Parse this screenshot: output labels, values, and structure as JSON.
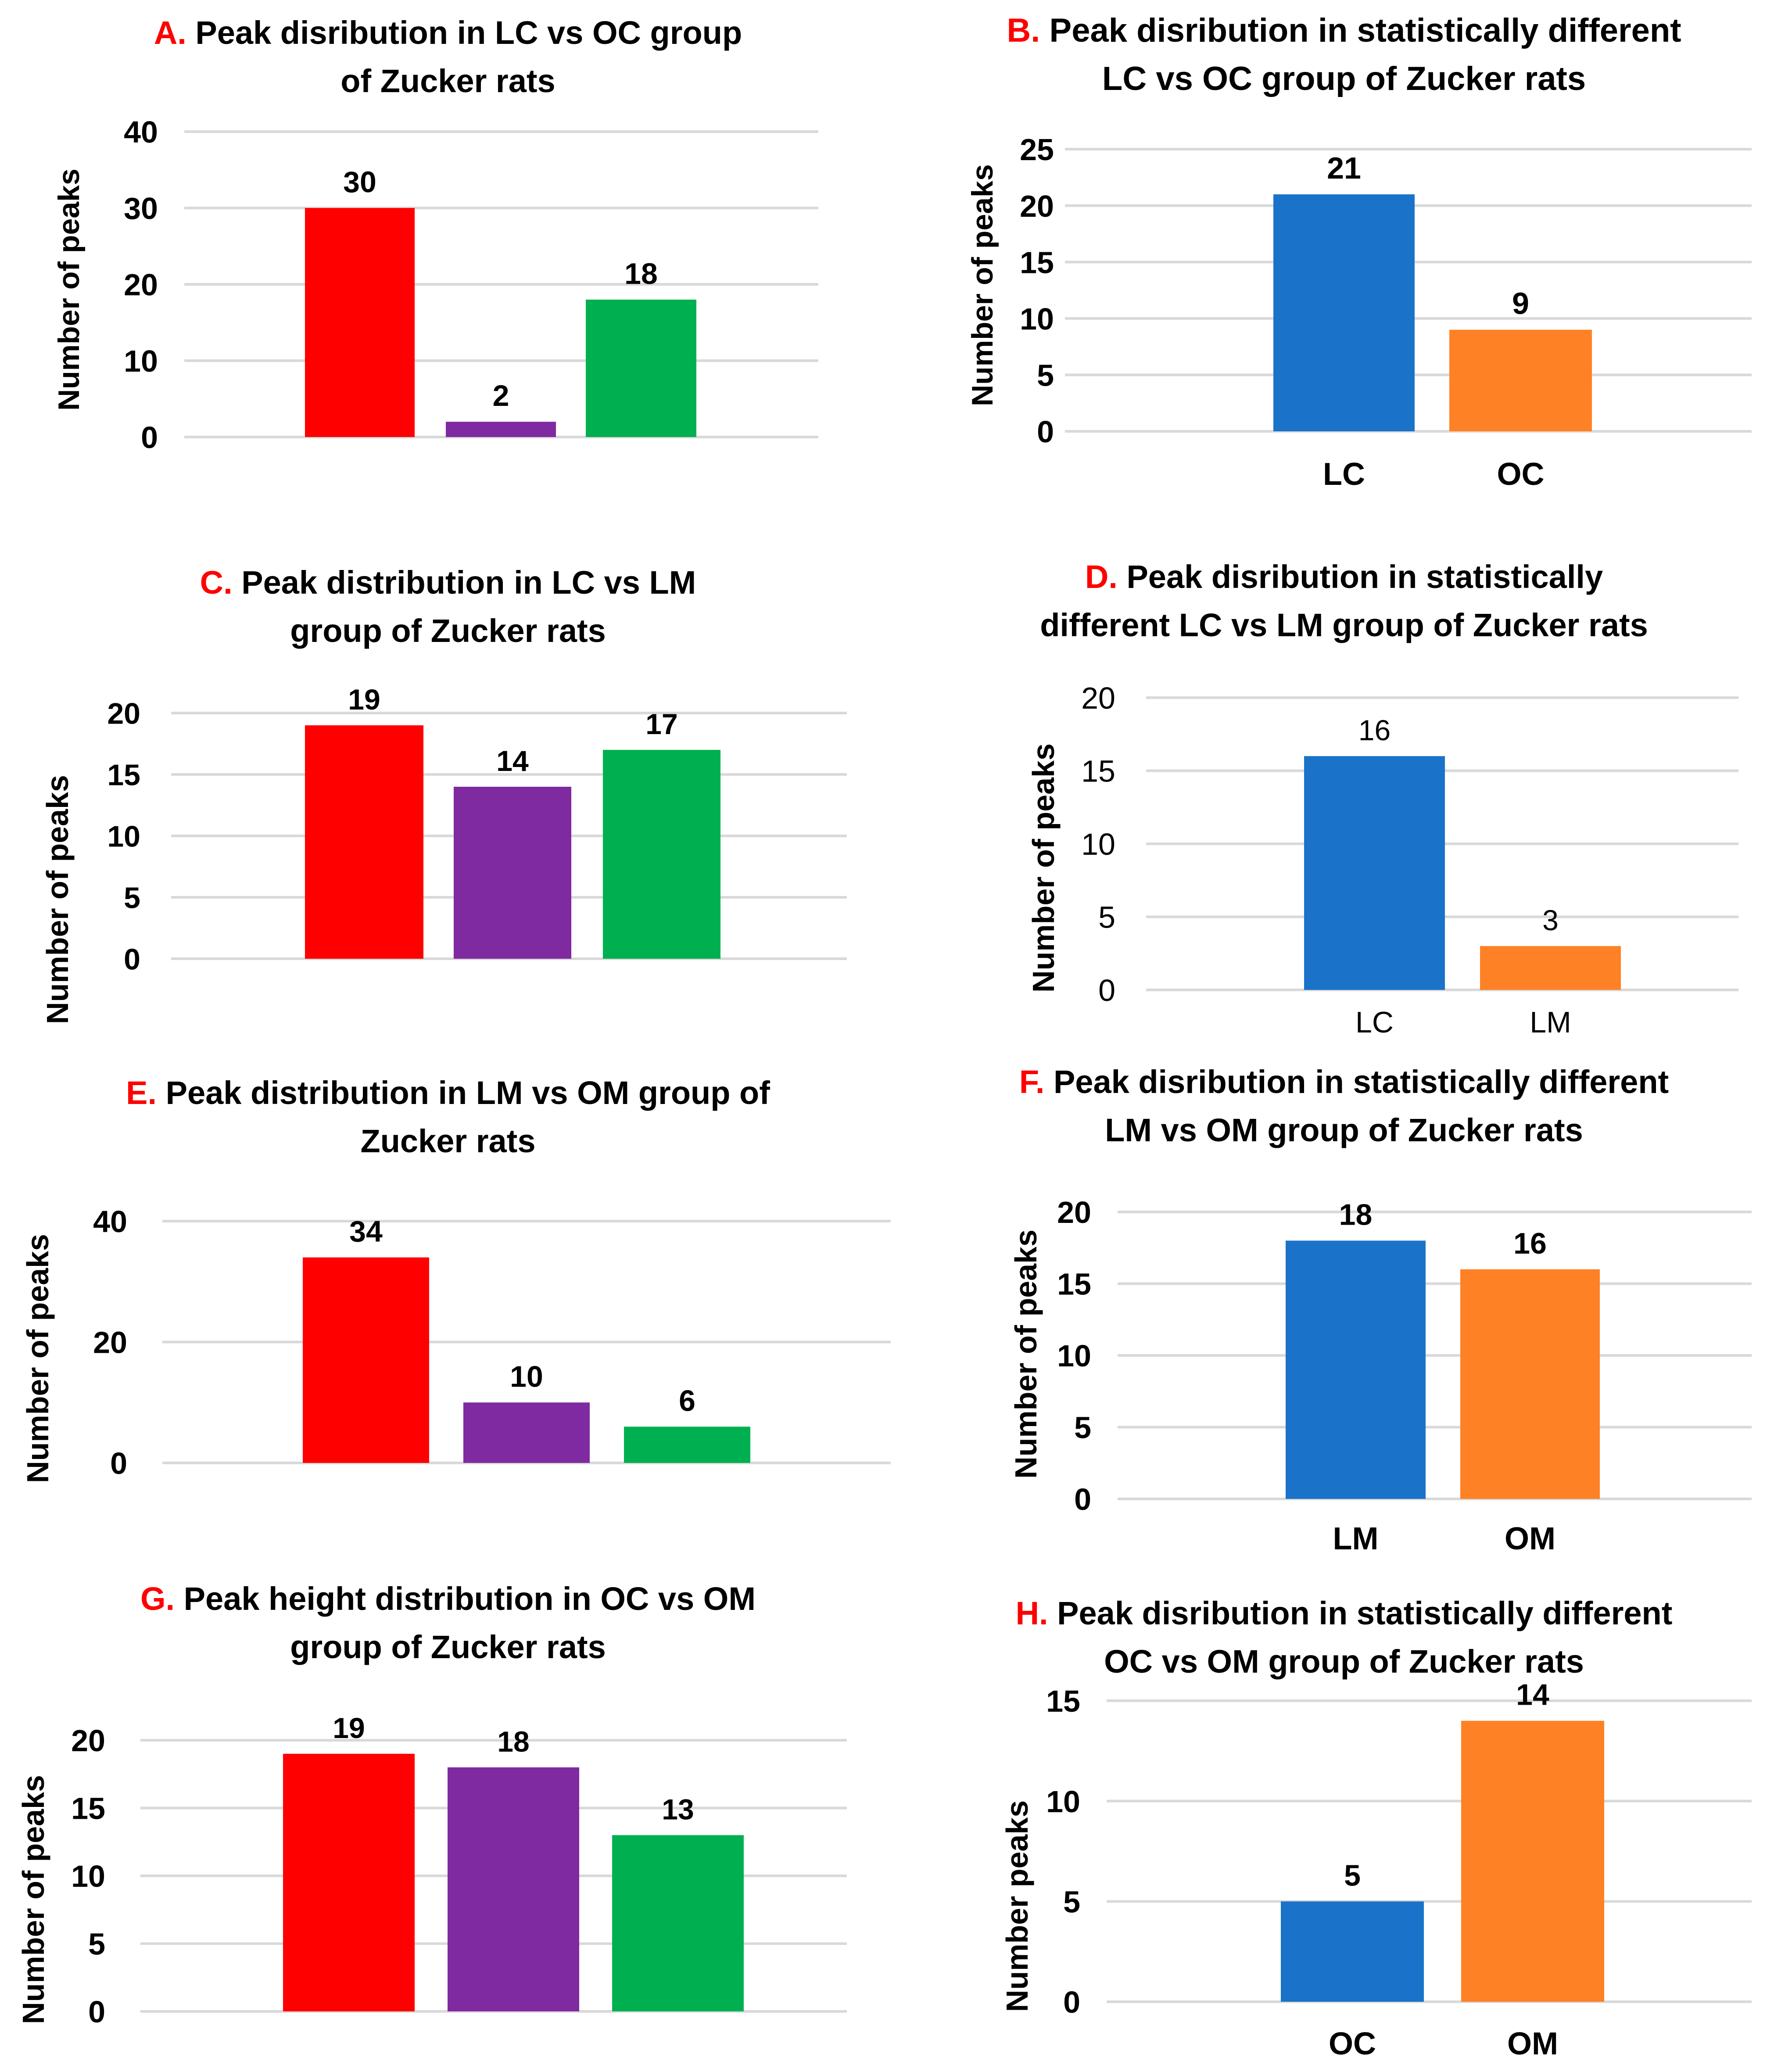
{
  "colors": {
    "red": "#ff0000",
    "purple": "#7f2aa0",
    "green": "#00b050",
    "blue": "#1a73c8",
    "orange": "#ff8125",
    "letter": "#ff0000",
    "grid": "#d9d9d9"
  },
  "chart_data": [
    {
      "id": "A",
      "type": "bar",
      "letter": "A.",
      "title_lines": [
        "Peak disribution in LC vs OC group",
        "of  Zucker rats"
      ],
      "ylabel": "Number of peaks",
      "categories": [
        "",
        "",
        ""
      ],
      "values": [
        30,
        2,
        18
      ],
      "bar_colors": [
        "red",
        "purple",
        "green"
      ],
      "yticks": [
        0,
        10,
        20,
        30,
        40
      ],
      "ylim": [
        0,
        40
      ]
    },
    {
      "id": "B",
      "type": "bar",
      "letter": "B.",
      "title_lines": [
        "Peak disribution in statistically different",
        "LC vs OC group of  Zucker rats"
      ],
      "ylabel": "Number of peaks",
      "categories": [
        "LC",
        "OC"
      ],
      "values": [
        21,
        9
      ],
      "bar_colors": [
        "blue",
        "orange"
      ],
      "yticks": [
        0,
        5,
        10,
        15,
        20,
        25
      ],
      "ylim": [
        0,
        25
      ]
    },
    {
      "id": "C",
      "type": "bar",
      "letter": "C.",
      "title_lines": [
        "Peak distribution in LC vs LM",
        "group of Zucker  rats"
      ],
      "ylabel": "Number of peaks",
      "categories": [
        "",
        "",
        ""
      ],
      "values": [
        19,
        14,
        17
      ],
      "bar_colors": [
        "red",
        "purple",
        "green"
      ],
      "yticks": [
        0,
        5,
        10,
        15,
        20
      ],
      "ylim": [
        0,
        20
      ]
    },
    {
      "id": "D",
      "type": "bar",
      "letter": "D.",
      "title_lines": [
        "Peak disribution in statistically",
        "different LC vs LM group of  Zucker rats"
      ],
      "ylabel": "Number of  peaks",
      "categories": [
        "LC",
        "LM"
      ],
      "values": [
        16,
        3
      ],
      "bar_colors": [
        "blue",
        "orange"
      ],
      "yticks": [
        0,
        5,
        10,
        15,
        20
      ],
      "ylim": [
        0,
        20
      ]
    },
    {
      "id": "E",
      "type": "bar",
      "letter": "E.",
      "title_lines": [
        "Peak distribution in LM vs OM group of",
        "Zucker  rats"
      ],
      "ylabel": "Number of peaks",
      "categories": [
        "",
        "",
        ""
      ],
      "values": [
        34,
        10,
        6
      ],
      "bar_colors": [
        "red",
        "purple",
        "green"
      ],
      "yticks": [
        0,
        20,
        40
      ],
      "ylim": [
        0,
        40
      ]
    },
    {
      "id": "F",
      "type": "bar",
      "letter": "F.",
      "title_lines": [
        "Peak disribution in statistically different",
        "LM vs OM group of  Zucker rats"
      ],
      "ylabel": "Number of peaks",
      "categories": [
        "LM",
        "OM"
      ],
      "values": [
        18,
        16
      ],
      "bar_colors": [
        "blue",
        "orange"
      ],
      "yticks": [
        0,
        5,
        10,
        15,
        20
      ],
      "ylim": [
        0,
        20
      ]
    },
    {
      "id": "G",
      "type": "bar",
      "letter": "G.",
      "title_lines": [
        "Peak height distribution in OC vs OM",
        "group of Zucker rats"
      ],
      "ylabel": "Number of peaks",
      "categories": [
        "",
        "",
        ""
      ],
      "values": [
        19,
        18,
        13
      ],
      "bar_colors": [
        "red",
        "purple",
        "green"
      ],
      "yticks": [
        0,
        5,
        10,
        15,
        20
      ],
      "ylim": [
        0,
        20
      ]
    },
    {
      "id": "H",
      "type": "bar",
      "letter": "H.",
      "title_lines": [
        "Peak disribution in statistically different",
        "OC vs OM group of  Zucker rats"
      ],
      "ylabel": "Number  peaks",
      "categories": [
        "OC",
        "OM"
      ],
      "values": [
        5,
        14
      ],
      "bar_colors": [
        "blue",
        "orange"
      ],
      "yticks": [
        0,
        5,
        10,
        15
      ],
      "ylim": [
        0,
        15
      ]
    }
  ]
}
